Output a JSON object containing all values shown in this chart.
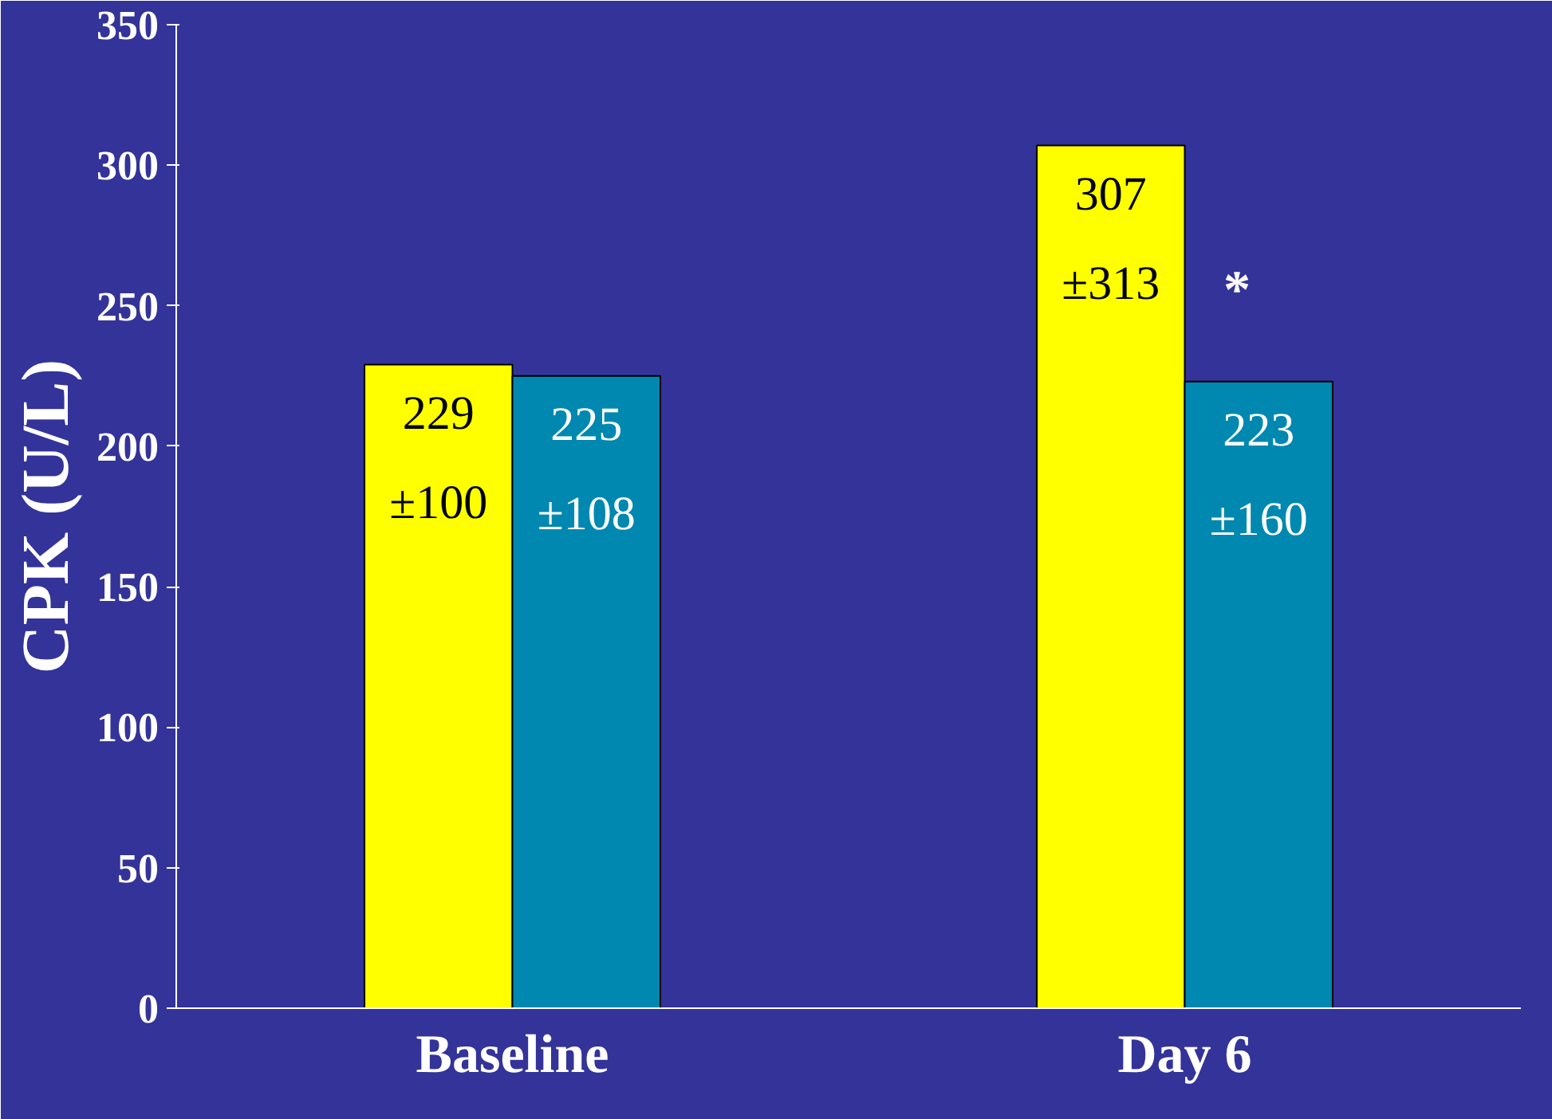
{
  "chart_data": {
    "type": "bar",
    "ylabel": "CPK (U/L)",
    "categories": [
      "Baseline",
      "Day 6"
    ],
    "series": [
      {
        "color": "#ffff00",
        "values": [
          229,
          307
        ],
        "value_labels": [
          "229\n±100",
          "307\n±313"
        ]
      },
      {
        "color": "#0088b0",
        "values": [
          225,
          223
        ],
        "value_labels": [
          "225\n±108",
          "223\n±160"
        ]
      }
    ],
    "ylim": [
      0,
      350
    ],
    "yticks": [
      0,
      50,
      100,
      150,
      200,
      250,
      300,
      350
    ],
    "grid": false,
    "annotations": [
      "*"
    ]
  }
}
